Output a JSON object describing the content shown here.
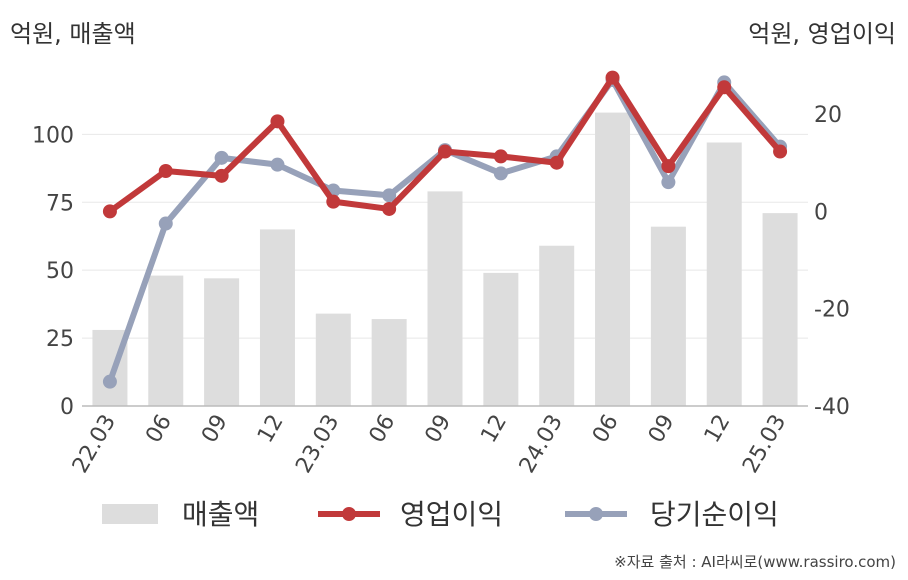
{
  "units": {
    "left": "억원, 매출액",
    "right": "억원, 영업이익"
  },
  "source": "※자료 출처 : AI라씨로(www.rassiro.com)",
  "colors": {
    "revenue": "#dddddd",
    "operating_profit": "#c1393a",
    "net_income": "#97a1b9",
    "grid": "#e8e8e8",
    "axis": "#bbbbbb"
  },
  "chart_data": {
    "type": "bar+line",
    "categories": [
      "22.03",
      "06",
      "09",
      "12",
      "23.03",
      "06",
      "09",
      "12",
      "24.03",
      "06",
      "09",
      "12",
      "25.03"
    ],
    "left_axis": {
      "ticks": [
        0,
        25,
        50,
        75,
        100
      ],
      "ylim": [
        0,
        120
      ]
    },
    "right_axis": {
      "ticks": [
        -40,
        -20,
        0,
        20
      ],
      "ylim": [
        -40,
        27
      ]
    },
    "series": [
      {
        "name": "매출액",
        "type": "bar",
        "axis": "left",
        "values": [
          28,
          48,
          47,
          65,
          34,
          32,
          79,
          49,
          59,
          108,
          66,
          97,
          71
        ]
      },
      {
        "name": "영업이익",
        "type": "line",
        "axis": "right",
        "values": [
          0,
          8.3,
          7.3,
          18.5,
          2,
          0.5,
          12.3,
          11.3,
          10,
          27.5,
          9.3,
          25.5,
          12.3
        ]
      },
      {
        "name": "당기순이익",
        "type": "line",
        "axis": "right",
        "values": [
          -35,
          -2.5,
          11,
          9.6,
          4.3,
          3.3,
          12.6,
          7.8,
          11.3,
          27,
          6,
          26.5,
          13.3
        ]
      }
    ],
    "legend_position": "bottom",
    "grid": true
  }
}
